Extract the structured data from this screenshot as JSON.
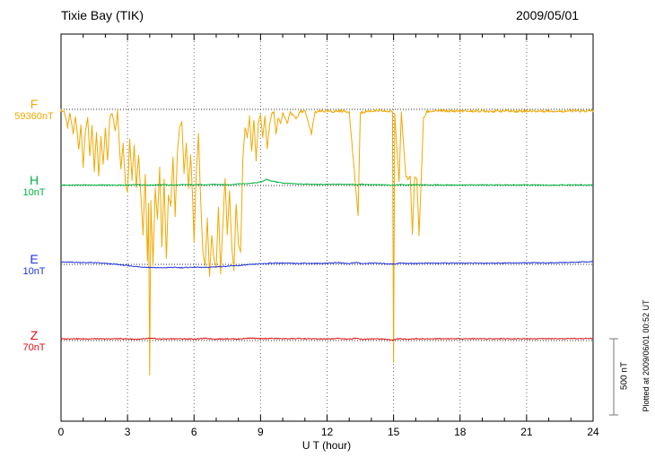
{
  "chart_data": {
    "type": "line",
    "title": "Tixie Bay (TIK)",
    "date": "2009/05/01",
    "xlabel": "U T (hour)",
    "x_range": [
      0,
      24
    ],
    "x_ticks": [
      0,
      3,
      6,
      9,
      12,
      15,
      18,
      21,
      24
    ],
    "grid": "vertical dotted lines every 3 hours; dotted horizontal baseline per component",
    "scale_bar_label": "500 nT",
    "scale_bar_nT": 500,
    "plotted_at": "Plotted at 2009/06/01 00:52 UT",
    "units_note": "points are [UT hour, offset from component baseline in nT]",
    "series": [
      {
        "name": "F",
        "baseline_label": "59360nT",
        "color": "#f2a800",
        "noise_nT": 9,
        "points": [
          [
            0,
            -6
          ],
          [
            0.15,
            -15
          ],
          [
            0.3,
            -120
          ],
          [
            0.4,
            -25
          ],
          [
            0.55,
            -160
          ],
          [
            0.65,
            -40
          ],
          [
            0.8,
            -260
          ],
          [
            0.9,
            -110
          ],
          [
            1.0,
            -380
          ],
          [
            1.1,
            -140
          ],
          [
            1.2,
            -50
          ],
          [
            1.3,
            -310
          ],
          [
            1.4,
            -100
          ],
          [
            1.5,
            -400
          ],
          [
            1.6,
            -150
          ],
          [
            1.7,
            -430
          ],
          [
            1.8,
            -180
          ],
          [
            1.9,
            -360
          ],
          [
            2.0,
            -120
          ],
          [
            2.1,
            -340
          ],
          [
            2.2,
            -60
          ],
          [
            2.3,
            -20
          ],
          [
            2.45,
            -140
          ],
          [
            2.55,
            -15
          ],
          [
            2.7,
            -390
          ],
          [
            2.8,
            -230
          ],
          [
            2.9,
            -480
          ],
          [
            3.0,
            -540
          ],
          [
            3.1,
            -200
          ],
          [
            3.2,
            -460
          ],
          [
            3.3,
            -240
          ],
          [
            3.4,
            -520
          ],
          [
            3.5,
            -300
          ],
          [
            3.6,
            -560
          ],
          [
            3.7,
            -820
          ],
          [
            3.8,
            -420
          ],
          [
            3.9,
            -1000
          ],
          [
            3.95,
            -620
          ],
          [
            4.0,
            -1750
          ],
          [
            4.05,
            -600
          ],
          [
            4.15,
            -1020
          ],
          [
            4.25,
            -520
          ],
          [
            4.35,
            -720
          ],
          [
            4.45,
            -380
          ],
          [
            4.55,
            -900
          ],
          [
            4.65,
            -460
          ],
          [
            4.75,
            -980
          ],
          [
            4.85,
            -560
          ],
          [
            4.95,
            -640
          ],
          [
            5.05,
            -320
          ],
          [
            5.15,
            -700
          ],
          [
            5.25,
            -280
          ],
          [
            5.35,
            -120
          ],
          [
            5.45,
            -80
          ],
          [
            5.55,
            -420
          ],
          [
            5.65,
            -220
          ],
          [
            5.75,
            -520
          ],
          [
            5.85,
            -300
          ],
          [
            5.95,
            -640
          ],
          [
            6.0,
            -870
          ],
          [
            6.1,
            -420
          ],
          [
            6.2,
            -160
          ],
          [
            6.3,
            -600
          ],
          [
            6.4,
            -940
          ],
          [
            6.5,
            -1020
          ],
          [
            6.6,
            -720
          ],
          [
            6.7,
            -1100
          ],
          [
            6.8,
            -830
          ],
          [
            6.9,
            -980
          ],
          [
            7.0,
            -1040
          ],
          [
            7.1,
            -640
          ],
          [
            7.2,
            -1080
          ],
          [
            7.3,
            -760
          ],
          [
            7.4,
            -460
          ],
          [
            7.5,
            -820
          ],
          [
            7.6,
            -540
          ],
          [
            7.7,
            -900
          ],
          [
            7.8,
            -1060
          ],
          [
            7.9,
            -620
          ],
          [
            8.0,
            -880
          ],
          [
            8.1,
            -940
          ],
          [
            8.2,
            -340
          ],
          [
            8.3,
            -120
          ],
          [
            8.4,
            -180
          ],
          [
            8.5,
            -50
          ],
          [
            8.6,
            -280
          ],
          [
            8.7,
            -70
          ],
          [
            8.8,
            -330
          ],
          [
            8.9,
            -90
          ],
          [
            9.0,
            -40
          ],
          [
            9.1,
            -180
          ],
          [
            9.2,
            -50
          ],
          [
            9.3,
            -260
          ],
          [
            9.4,
            -110
          ],
          [
            9.5,
            -30
          ],
          [
            9.6,
            -20
          ],
          [
            9.7,
            -160
          ],
          [
            9.8,
            -50
          ],
          [
            9.9,
            -100
          ],
          [
            10.0,
            -20
          ],
          [
            10.2,
            -90
          ],
          [
            10.35,
            -20
          ],
          [
            10.6,
            -60
          ],
          [
            10.8,
            -15
          ],
          [
            11.0,
            -12
          ],
          [
            11.3,
            -160
          ],
          [
            11.45,
            -20
          ],
          [
            11.8,
            -12
          ],
          [
            12.2,
            -15
          ],
          [
            12.6,
            -10
          ],
          [
            13.0,
            -15
          ],
          [
            13.4,
            -700
          ],
          [
            13.5,
            -25
          ],
          [
            13.8,
            -12
          ],
          [
            14.2,
            -10
          ],
          [
            14.6,
            -12
          ],
          [
            14.95,
            -15
          ],
          [
            15.0,
            -1660
          ],
          [
            15.05,
            -18
          ],
          [
            15.25,
            -480
          ],
          [
            15.35,
            -25
          ],
          [
            15.55,
            -430
          ],
          [
            15.65,
            -460
          ],
          [
            15.75,
            -440
          ],
          [
            15.85,
            -820
          ],
          [
            15.95,
            -450
          ],
          [
            16.05,
            -460
          ],
          [
            16.15,
            -830
          ],
          [
            16.25,
            -450
          ],
          [
            16.35,
            -60
          ],
          [
            16.5,
            -15
          ],
          [
            16.8,
            -12
          ],
          [
            17.2,
            -10
          ],
          [
            17.6,
            -12
          ],
          [
            18.0,
            -10
          ],
          [
            18.5,
            -12
          ],
          [
            19.0,
            -10
          ],
          [
            19.5,
            -12
          ],
          [
            20.0,
            -10
          ],
          [
            20.5,
            -12
          ],
          [
            21.0,
            -10
          ],
          [
            21.5,
            -12
          ],
          [
            22.0,
            -10
          ],
          [
            22.5,
            -12
          ],
          [
            23.0,
            -10
          ],
          [
            23.5,
            -12
          ],
          [
            24,
            -10
          ]
        ]
      },
      {
        "name": "H",
        "baseline_label": "10nT",
        "color": "#00b43c",
        "noise_nT": 3,
        "points": [
          [
            0,
            3
          ],
          [
            0.5,
            2
          ],
          [
            1,
            4
          ],
          [
            1.5,
            2
          ],
          [
            2,
            4
          ],
          [
            2.5,
            2
          ],
          [
            3,
            3
          ],
          [
            3.5,
            5
          ],
          [
            4,
            3
          ],
          [
            4.5,
            6
          ],
          [
            5,
            3
          ],
          [
            5.5,
            5
          ],
          [
            6,
            6
          ],
          [
            6.5,
            4
          ],
          [
            7,
            8
          ],
          [
            7.5,
            5
          ],
          [
            8,
            10
          ],
          [
            8.5,
            13
          ],
          [
            9,
            22
          ],
          [
            9.25,
            40
          ],
          [
            9.5,
            30
          ],
          [
            9.75,
            22
          ],
          [
            10,
            16
          ],
          [
            10.5,
            11
          ],
          [
            11,
            9
          ],
          [
            11.5,
            7
          ],
          [
            12,
            7
          ],
          [
            12.5,
            8
          ],
          [
            13,
            9
          ],
          [
            13.3,
            5
          ],
          [
            13.6,
            8
          ],
          [
            14,
            6
          ],
          [
            14.5,
            4
          ],
          [
            15,
            2
          ],
          [
            15.3,
            7
          ],
          [
            15.6,
            3
          ],
          [
            16,
            5
          ],
          [
            16.5,
            4
          ],
          [
            17,
            4
          ],
          [
            18,
            3
          ],
          [
            19,
            4
          ],
          [
            20,
            3
          ],
          [
            21,
            4
          ],
          [
            22,
            3
          ],
          [
            23,
            4
          ],
          [
            24,
            3
          ]
        ]
      },
      {
        "name": "E",
        "baseline_label": "10nT",
        "color": "#2233dd",
        "noise_nT": 3,
        "points": [
          [
            0,
            15
          ],
          [
            0.5,
            14
          ],
          [
            1,
            12
          ],
          [
            1.5,
            11
          ],
          [
            2,
            6
          ],
          [
            2.5,
            0
          ],
          [
            3,
            -8
          ],
          [
            3.5,
            -16
          ],
          [
            4,
            -20
          ],
          [
            4.5,
            -23
          ],
          [
            5,
            -20
          ],
          [
            5.5,
            -22
          ],
          [
            6,
            -18
          ],
          [
            6.5,
            -21
          ],
          [
            7,
            -16
          ],
          [
            7.5,
            -12
          ],
          [
            8,
            -8
          ],
          [
            8.5,
            -2
          ],
          [
            9,
            4
          ],
          [
            9.5,
            8
          ],
          [
            10,
            9
          ],
          [
            10.5,
            6
          ],
          [
            11,
            8
          ],
          [
            11.5,
            6
          ],
          [
            12,
            8
          ],
          [
            12.5,
            11
          ],
          [
            13,
            5
          ],
          [
            13.3,
            13
          ],
          [
            13.6,
            4
          ],
          [
            14,
            9
          ],
          [
            14.5,
            6
          ],
          [
            15,
            2
          ],
          [
            15.3,
            9
          ],
          [
            15.7,
            6
          ],
          [
            16,
            7
          ],
          [
            16.5,
            8
          ],
          [
            17,
            8
          ],
          [
            18,
            8
          ],
          [
            19,
            8
          ],
          [
            20,
            9
          ],
          [
            21,
            10
          ],
          [
            22,
            10
          ],
          [
            23,
            13
          ],
          [
            24,
            18
          ]
        ]
      },
      {
        "name": "Z",
        "baseline_label": "70nT",
        "color": "#dd1111",
        "noise_nT": 3,
        "points": [
          [
            0,
            10
          ],
          [
            0.5,
            12
          ],
          [
            1,
            11
          ],
          [
            1.5,
            12
          ],
          [
            2,
            10
          ],
          [
            2.5,
            12
          ],
          [
            3,
            11
          ],
          [
            3.5,
            8
          ],
          [
            4,
            14
          ],
          [
            4.5,
            10
          ],
          [
            5,
            12
          ],
          [
            5.5,
            11
          ],
          [
            6,
            10
          ],
          [
            6.5,
            14
          ],
          [
            7,
            10
          ],
          [
            7.5,
            12
          ],
          [
            8,
            10
          ],
          [
            8.5,
            16
          ],
          [
            9,
            12
          ],
          [
            9.5,
            14
          ],
          [
            10,
            12
          ],
          [
            10.5,
            13
          ],
          [
            11,
            12
          ],
          [
            11.5,
            11
          ],
          [
            12,
            10
          ],
          [
            12.5,
            14
          ],
          [
            13,
            9
          ],
          [
            13.3,
            16
          ],
          [
            13.6,
            8
          ],
          [
            14,
            12
          ],
          [
            14.5,
            10
          ],
          [
            15,
            4
          ],
          [
            15.2,
            12
          ],
          [
            15.5,
            9
          ],
          [
            16,
            12
          ],
          [
            16.5,
            11
          ],
          [
            17,
            12
          ],
          [
            18,
            12
          ],
          [
            19,
            12
          ],
          [
            20,
            12
          ],
          [
            21,
            12
          ],
          [
            22,
            12
          ],
          [
            23,
            12
          ],
          [
            24,
            14
          ]
        ]
      }
    ]
  }
}
